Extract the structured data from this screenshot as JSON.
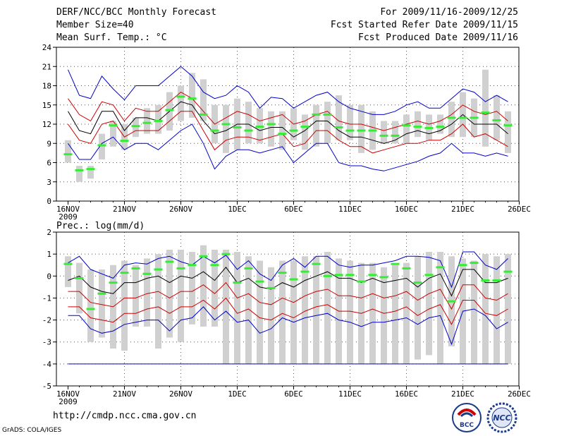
{
  "header": {
    "left": [
      "DERF/NCC/BCC Monthly Forecast",
      "Member Size=40",
      "Mean Surf. Temp.: °C"
    ],
    "right": [
      "For 2009/11/16-2009/12/25",
      "Fcst Started Refer Date 2009/11/15",
      "Fcst Produced Date 2009/11/16"
    ]
  },
  "footer": {
    "url": "http://cmdp.ncc.cma.gov.cn",
    "credit": "GrADS: COLA/IGES",
    "logo_left": "BCC",
    "logo_right": "NCC"
  },
  "colors": {
    "box": "#d0d0d0",
    "median": "#33ee33",
    "mean": "#000000",
    "spread": "#cc0000",
    "extreme": "#0000cc",
    "grid": "#555555"
  },
  "chart_data": [
    {
      "type": "box-ensemble",
      "title": "Mean Surf. Temp.: °C",
      "x_tick_labels": [
        "16NOV",
        "21NOV",
        "26NOV",
        "1DEC",
        "6DEC",
        "11DEC",
        "16DEC",
        "21DEC",
        "26DEC"
      ],
      "x_year_label": "2009",
      "ylim": [
        0,
        24
      ],
      "y_ticks": [
        0,
        3,
        6,
        9,
        12,
        15,
        18,
        21,
        24
      ],
      "days": 40,
      "box_low": [
        6,
        3,
        3.5,
        6.5,
        8.5,
        8,
        10,
        10.5,
        10.5,
        11,
        12.5,
        13,
        12.5,
        9,
        7.5,
        8,
        9,
        9,
        8.5,
        8,
        9.5,
        8,
        8.5,
        9,
        9.5,
        9.5,
        7.5,
        8,
        9,
        9,
        9,
        10,
        9.5,
        10.5,
        10,
        10,
        10,
        8.5,
        9.5,
        7.5
      ],
      "box_high": [
        9.5,
        5.5,
        5.5,
        10.5,
        12.5,
        12,
        13,
        14.5,
        15,
        17,
        18,
        20,
        19,
        15,
        15,
        16,
        15.5,
        14.5,
        14,
        14,
        14.5,
        13.5,
        15,
        15.5,
        16.5,
        15,
        15,
        14,
        12.5,
        12.5,
        13.5,
        14,
        13.5,
        13.5,
        15.5,
        17,
        16,
        20.5,
        16.5,
        14
      ],
      "median": [
        7.3,
        4.8,
        5.0,
        8.7,
        11.8,
        9.4,
        11.7,
        12.2,
        12.5,
        14.2,
        16.3,
        16.0,
        13.5,
        11.0,
        12.0,
        11.5,
        11.0,
        11.6,
        12.0,
        10.5,
        11.0,
        11.6,
        13.5,
        13.5,
        11.5,
        11.0,
        11.0,
        11.0,
        10.2,
        10.2,
        11.8,
        11.6,
        11.4,
        11.6,
        13.0,
        13.0,
        13.0,
        13.8,
        12.6,
        11.8
      ],
      "series": [
        {
          "name": "upper-extreme",
          "values": [
            20.5,
            16.5,
            16,
            19.5,
            17.5,
            15.8,
            18,
            18,
            18,
            19.5,
            21,
            19.5,
            17,
            16,
            16.5,
            18,
            17,
            14.5,
            16.2,
            16,
            14.5,
            15.5,
            16.5,
            17,
            15.5,
            14.5,
            14,
            13.5,
            13.5,
            14,
            15,
            15.5,
            14.5,
            14.5,
            16,
            17.5,
            17,
            15.5,
            16.5,
            15.5
          ]
        },
        {
          "name": "upper-spread",
          "values": [
            16,
            13.5,
            12.5,
            15.5,
            15,
            12.5,
            14.5,
            14,
            14,
            15.5,
            17,
            16,
            14,
            12,
            13,
            14,
            13.5,
            12.5,
            13,
            13.5,
            12,
            12.5,
            13.5,
            14,
            12.5,
            12,
            12,
            11.5,
            11,
            11.5,
            12,
            12.5,
            12,
            12.5,
            13.5,
            15,
            14,
            13.5,
            14,
            12.5
          ]
        },
        {
          "name": "mean",
          "values": [
            14,
            11,
            10.5,
            14,
            14,
            11,
            13,
            13,
            12.5,
            14,
            15.5,
            15,
            12.5,
            10.5,
            11,
            12,
            12,
            11,
            11.5,
            11.5,
            10,
            11,
            12.5,
            12.5,
            11,
            10,
            10,
            9.5,
            9,
            9.5,
            10.5,
            11,
            10.5,
            11,
            12,
            13.5,
            12,
            12,
            12,
            10.5
          ]
        },
        {
          "name": "lower-spread",
          "values": [
            12,
            9.5,
            9,
            12,
            12.5,
            10,
            11,
            11,
            11,
            12.5,
            14,
            14,
            11,
            8,
            9.5,
            10,
            10,
            9.5,
            10,
            10.5,
            8.5,
            9,
            11,
            11,
            9.5,
            8.5,
            8.5,
            7.5,
            8,
            8.5,
            9,
            9,
            9.5,
            9.5,
            10.5,
            12,
            10,
            10.5,
            9.5,
            8.5
          ]
        },
        {
          "name": "lower-extreme",
          "values": [
            9,
            6.5,
            6.5,
            9,
            10,
            8,
            9,
            9,
            8,
            9.5,
            11,
            12,
            9,
            5,
            7,
            8,
            8,
            7.5,
            8,
            8.5,
            6,
            7.5,
            9,
            9,
            6,
            5.5,
            5.5,
            5,
            4.7,
            5.2,
            5.7,
            6.2,
            7,
            7.5,
            9,
            7.5,
            7.5,
            7,
            7.5,
            7
          ]
        }
      ]
    },
    {
      "type": "box-ensemble",
      "title": "Prec.: log(mm/d)",
      "x_tick_labels": [
        "16NOV",
        "21NOV",
        "26NOV",
        "1DEC",
        "6DEC",
        "11DEC",
        "16DEC",
        "21DEC",
        "26DEC"
      ],
      "x_year_label": "2009",
      "ylim": [
        -5,
        2
      ],
      "y_ticks": [
        -5,
        -4,
        -3,
        -2,
        -1,
        0,
        1,
        2
      ],
      "days": 40,
      "box_low": [
        -0.5,
        -1.7,
        -3,
        -2.8,
        -3.3,
        -3.4,
        -2.3,
        -2.3,
        -3.3,
        -2.8,
        -3.0,
        -2.2,
        -2.3,
        -2.3,
        -4,
        -4,
        -4,
        -4,
        -4,
        -4,
        -4,
        -4,
        -4,
        -4,
        -4,
        -4,
        -4,
        -4,
        -4,
        -4,
        -4,
        -3.8,
        -3.6,
        -4,
        -3.2,
        -4,
        -4,
        -4,
        -4,
        -4
      ],
      "box_high": [
        0.9,
        0.6,
        0.3,
        0.3,
        0.5,
        0.7,
        0.5,
        0.8,
        1.0,
        1.2,
        1.2,
        1.1,
        1.4,
        1.2,
        1.2,
        1.1,
        0.9,
        0.7,
        0.4,
        0.7,
        0.7,
        0.9,
        0.9,
        1.1,
        0.8,
        0.7,
        0.6,
        0.6,
        0.4,
        0.5,
        0.6,
        0.9,
        1.1,
        1.1,
        0.9,
        0.8,
        0.7,
        1.0,
        0.9,
        1.0
      ],
      "median": [
        0.55,
        -0.1,
        -1.5,
        -0.8,
        -0.3,
        0.15,
        0.35,
        0.1,
        0.3,
        0.65,
        0.35,
        0.5,
        0.9,
        0.5,
        1.0,
        -0.3,
        0.35,
        -0.25,
        -0.55,
        0.15,
        -0.15,
        0.2,
        0.55,
        0.0,
        0.05,
        0.05,
        -0.25,
        0.05,
        -0.05,
        0.55,
        0.35,
        -0.3,
        0.05,
        0.4,
        -1.15,
        0.5,
        0.6,
        -0.2,
        -0.2,
        0.2
      ],
      "lower_bound": -4,
      "series": [
        {
          "name": "upper-extreme",
          "values": [
            0.6,
            0.9,
            0.3,
            0.1,
            -0.1,
            0.5,
            0.6,
            0.55,
            0.8,
            0.9,
            0.65,
            0.5,
            0.9,
            0.6,
            0.95,
            0.3,
            0.7,
            0.1,
            -0.2,
            0.5,
            0.8,
            0.4,
            0.9,
            0.9,
            0.5,
            0.4,
            0.5,
            0.5,
            0.6,
            0.7,
            0.9,
            0.9,
            0.85,
            0.7,
            -0.5,
            1.1,
            1.1,
            0.5,
            0.3,
            0.8
          ]
        },
        {
          "name": "mean",
          "values": [
            -0.2,
            0.0,
            -0.5,
            -0.7,
            -0.8,
            -0.3,
            -0.3,
            -0.1,
            0.0,
            -0.3,
            0.0,
            -0.1,
            0.2,
            -0.2,
            0.4,
            -0.3,
            -0.1,
            -0.5,
            -0.6,
            -0.3,
            -0.5,
            -0.2,
            0.0,
            0.2,
            -0.1,
            -0.1,
            -0.3,
            -0.1,
            -0.3,
            -0.2,
            -0.1,
            -0.5,
            -0.1,
            0.1,
            -0.9,
            0.3,
            0.3,
            -0.3,
            -0.3,
            -0.1
          ]
        },
        {
          "name": "upper-spread",
          "values": [
            -0.7,
            -0.7,
            -1.2,
            -1.3,
            -1.4,
            -1.0,
            -1.0,
            -0.8,
            -0.7,
            -1.0,
            -0.7,
            -0.7,
            -0.4,
            -0.8,
            -0.3,
            -1.0,
            -0.8,
            -1.2,
            -1.3,
            -1.0,
            -1.2,
            -0.9,
            -0.7,
            -0.6,
            -0.9,
            -0.9,
            -1.0,
            -0.8,
            -1.0,
            -0.9,
            -0.7,
            -1.1,
            -0.8,
            -0.6,
            -1.5,
            -0.4,
            -0.4,
            -1.0,
            -1.1,
            -0.8
          ]
        },
        {
          "name": "lower-spread",
          "values": [
            -1.4,
            -1.4,
            -1.9,
            -2.0,
            -2.1,
            -1.7,
            -1.7,
            -1.5,
            -1.4,
            -1.7,
            -1.4,
            -1.4,
            -1.1,
            -1.5,
            -1.0,
            -1.7,
            -1.5,
            -1.9,
            -2.0,
            -1.7,
            -1.9,
            -1.6,
            -1.4,
            -1.3,
            -1.6,
            -1.6,
            -1.7,
            -1.5,
            -1.7,
            -1.6,
            -1.4,
            -1.8,
            -1.5,
            -1.3,
            -2.2,
            -1.1,
            -1.1,
            -1.7,
            -1.8,
            -1.5
          ]
        },
        {
          "name": "lower-extreme",
          "values": [
            -1.8,
            -1.8,
            -2.4,
            -2.6,
            -2.5,
            -2.2,
            -2.1,
            -2.0,
            -2.0,
            -2.5,
            -2.0,
            -1.9,
            -1.4,
            -2.0,
            -1.6,
            -2.1,
            -2.0,
            -2.6,
            -2.4,
            -1.9,
            -2.1,
            -1.9,
            -1.8,
            -1.7,
            -2.0,
            -2.1,
            -2.3,
            -2.1,
            -2.1,
            -2.0,
            -1.9,
            -2.2,
            -1.9,
            -1.8,
            -3.1,
            -1.6,
            -1.5,
            -1.8,
            -2.4,
            -2.1
          ]
        }
      ]
    }
  ]
}
